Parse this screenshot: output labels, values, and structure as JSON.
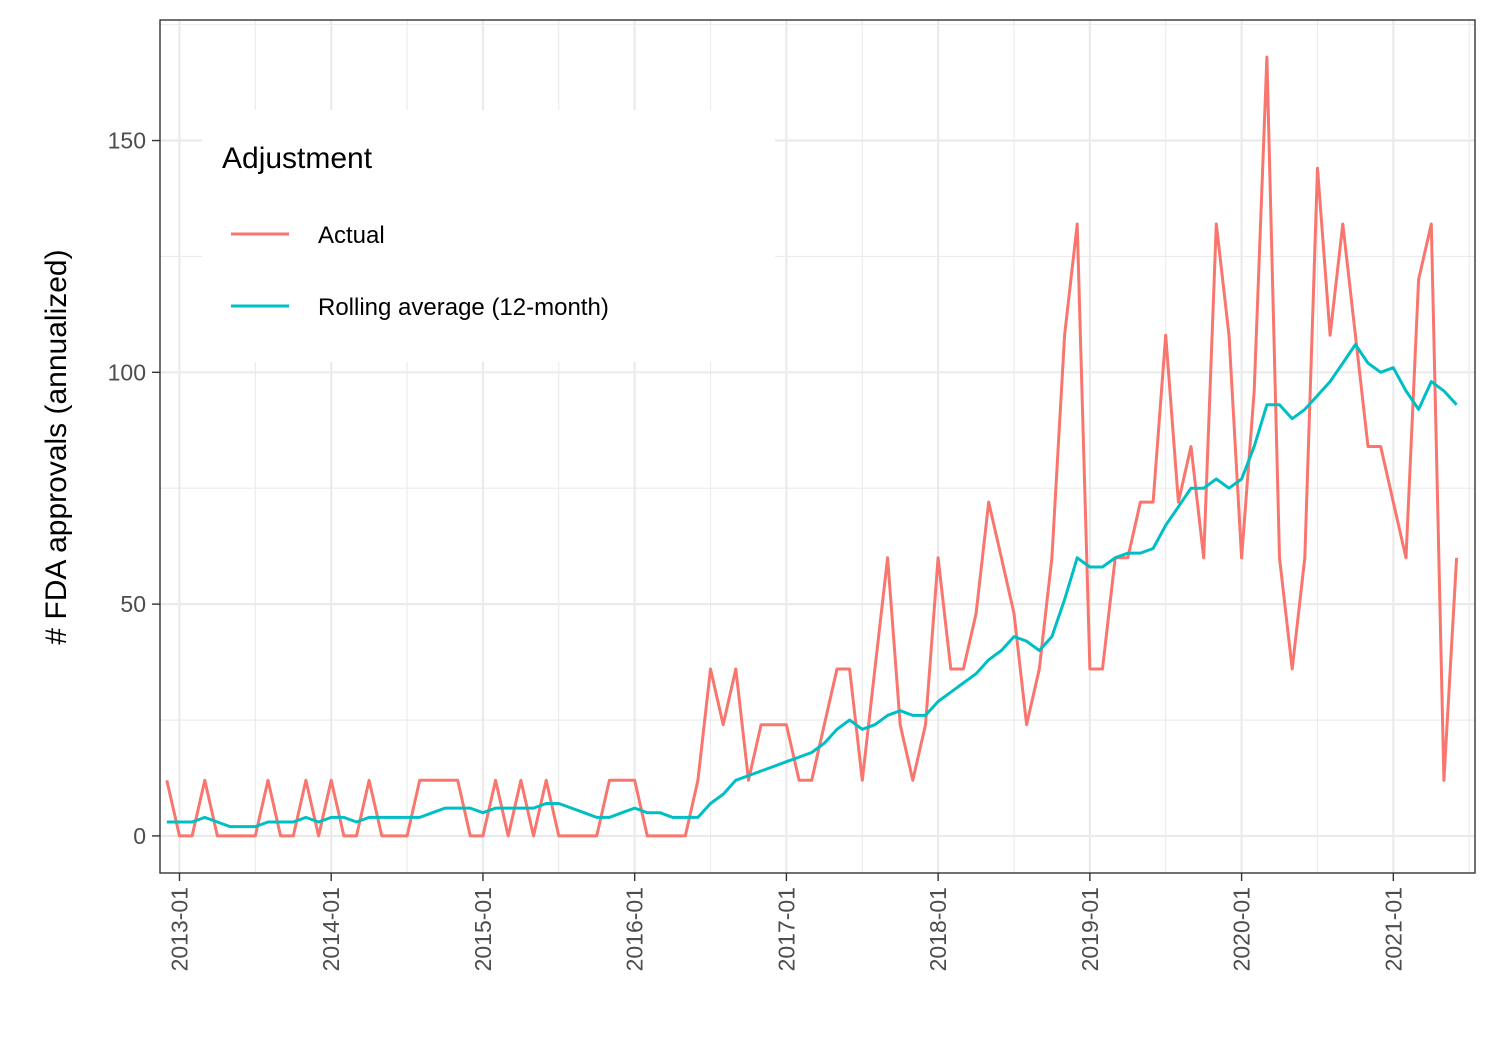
{
  "chart_data": {
    "type": "line",
    "title": "",
    "xlabel": "",
    "ylabel": "# FDA approvals (annualized)",
    "x_ticks": [
      "2013-01",
      "2014-01",
      "2015-01",
      "2016-01",
      "2017-01",
      "2018-01",
      "2019-01",
      "2020-01",
      "2021-01"
    ],
    "y_ticks": [
      0,
      50,
      100,
      150
    ],
    "x_range": [
      "2012-11-15",
      "2021-07-15"
    ],
    "ylim": [
      -8,
      176
    ],
    "grid": true,
    "legend": {
      "title": "Adjustment",
      "position": "top-left",
      "entries": [
        "Actual",
        "Rolling average (12-month)"
      ]
    },
    "series": [
      {
        "name": "Actual",
        "color": "#F8766D",
        "x": [
          "2012-12",
          "2013-01",
          "2013-02",
          "2013-03",
          "2013-04",
          "2013-05",
          "2013-06",
          "2013-07",
          "2013-08",
          "2013-09",
          "2013-10",
          "2013-11",
          "2013-12",
          "2014-01",
          "2014-02",
          "2014-03",
          "2014-04",
          "2014-05",
          "2014-06",
          "2014-07",
          "2014-08",
          "2014-09",
          "2014-10",
          "2014-11",
          "2014-12",
          "2015-01",
          "2015-02",
          "2015-03",
          "2015-04",
          "2015-05",
          "2015-06",
          "2015-07",
          "2015-08",
          "2015-09",
          "2015-10",
          "2015-11",
          "2015-12",
          "2016-01",
          "2016-02",
          "2016-03",
          "2016-04",
          "2016-05",
          "2016-06",
          "2016-07",
          "2016-08",
          "2016-09",
          "2016-10",
          "2016-11",
          "2016-12",
          "2017-01",
          "2017-02",
          "2017-03",
          "2017-04",
          "2017-05",
          "2017-06",
          "2017-07",
          "2017-08",
          "2017-09",
          "2017-10",
          "2017-11",
          "2017-12",
          "2018-01",
          "2018-02",
          "2018-03",
          "2018-04",
          "2018-05",
          "2018-06",
          "2018-07",
          "2018-08",
          "2018-09",
          "2018-10",
          "2018-11",
          "2018-12",
          "2019-01",
          "2019-02",
          "2019-03",
          "2019-04",
          "2019-05",
          "2019-06",
          "2019-07",
          "2019-08",
          "2019-09",
          "2019-10",
          "2019-11",
          "2019-12",
          "2020-01",
          "2020-02",
          "2020-03",
          "2020-04",
          "2020-05",
          "2020-06",
          "2020-07",
          "2020-08",
          "2020-09",
          "2020-10",
          "2020-11",
          "2020-12",
          "2021-01",
          "2021-02",
          "2021-03",
          "2021-04",
          "2021-05",
          "2021-06"
        ],
        "values": [
          12,
          0,
          0,
          12,
          0,
          0,
          0,
          0,
          12,
          0,
          0,
          12,
          0,
          12,
          0,
          0,
          12,
          0,
          0,
          0,
          12,
          12,
          12,
          12,
          0,
          0,
          12,
          0,
          12,
          0,
          12,
          0,
          0,
          0,
          0,
          12,
          12,
          12,
          0,
          0,
          0,
          0,
          12,
          36,
          24,
          36,
          12,
          24,
          24,
          24,
          12,
          12,
          24,
          36,
          36,
          12,
          36,
          60,
          24,
          12,
          24,
          60,
          36,
          36,
          48,
          72,
          60,
          48,
          24,
          36,
          60,
          108,
          132,
          36,
          36,
          60,
          60,
          72,
          72,
          108,
          72,
          84,
          60,
          132,
          108,
          60,
          96,
          168,
          60,
          36,
          60,
          144,
          108,
          132,
          108,
          84,
          84,
          72,
          60,
          120,
          132,
          12,
          60
        ]
      },
      {
        "name": "Rolling average (12-month)",
        "color": "#00BFC4",
        "x": [
          "2012-12",
          "2013-01",
          "2013-02",
          "2013-03",
          "2013-04",
          "2013-05",
          "2013-06",
          "2013-07",
          "2013-08",
          "2013-09",
          "2013-10",
          "2013-11",
          "2013-12",
          "2014-01",
          "2014-02",
          "2014-03",
          "2014-04",
          "2014-05",
          "2014-06",
          "2014-07",
          "2014-08",
          "2014-09",
          "2014-10",
          "2014-11",
          "2014-12",
          "2015-01",
          "2015-02",
          "2015-03",
          "2015-04",
          "2015-05",
          "2015-06",
          "2015-07",
          "2015-08",
          "2015-09",
          "2015-10",
          "2015-11",
          "2015-12",
          "2016-01",
          "2016-02",
          "2016-03",
          "2016-04",
          "2016-05",
          "2016-06",
          "2016-07",
          "2016-08",
          "2016-09",
          "2016-10",
          "2016-11",
          "2016-12",
          "2017-01",
          "2017-02",
          "2017-03",
          "2017-04",
          "2017-05",
          "2017-06",
          "2017-07",
          "2017-08",
          "2017-09",
          "2017-10",
          "2017-11",
          "2017-12",
          "2018-01",
          "2018-02",
          "2018-03",
          "2018-04",
          "2018-05",
          "2018-06",
          "2018-07",
          "2018-08",
          "2018-09",
          "2018-10",
          "2018-11",
          "2018-12",
          "2019-01",
          "2019-02",
          "2019-03",
          "2019-04",
          "2019-05",
          "2019-06",
          "2019-07",
          "2019-08",
          "2019-09",
          "2019-10",
          "2019-11",
          "2019-12",
          "2020-01",
          "2020-02",
          "2020-03",
          "2020-04",
          "2020-05",
          "2020-06",
          "2020-07",
          "2020-08",
          "2020-09",
          "2020-10",
          "2020-11",
          "2020-12",
          "2021-01",
          "2021-02",
          "2021-03",
          "2021-04",
          "2021-05",
          "2021-06"
        ],
        "values": [
          3,
          3,
          3,
          4,
          3,
          2,
          2,
          2,
          3,
          3,
          3,
          4,
          3,
          4,
          4,
          3,
          4,
          4,
          4,
          4,
          4,
          5,
          6,
          6,
          6,
          5,
          6,
          6,
          6,
          6,
          7,
          7,
          6,
          5,
          4,
          4,
          5,
          6,
          5,
          5,
          4,
          4,
          4,
          7,
          9,
          12,
          13,
          14,
          15,
          16,
          17,
          18,
          20,
          23,
          25,
          23,
          24,
          26,
          27,
          26,
          26,
          29,
          31,
          33,
          35,
          38,
          40,
          43,
          42,
          40,
          43,
          51,
          60,
          58,
          58,
          60,
          61,
          61,
          62,
          67,
          71,
          75,
          75,
          77,
          75,
          77,
          84,
          93,
          93,
          90,
          92,
          95,
          98,
          102,
          106,
          102,
          100,
          101,
          96,
          92,
          98,
          96,
          93
        ]
      }
    ]
  }
}
